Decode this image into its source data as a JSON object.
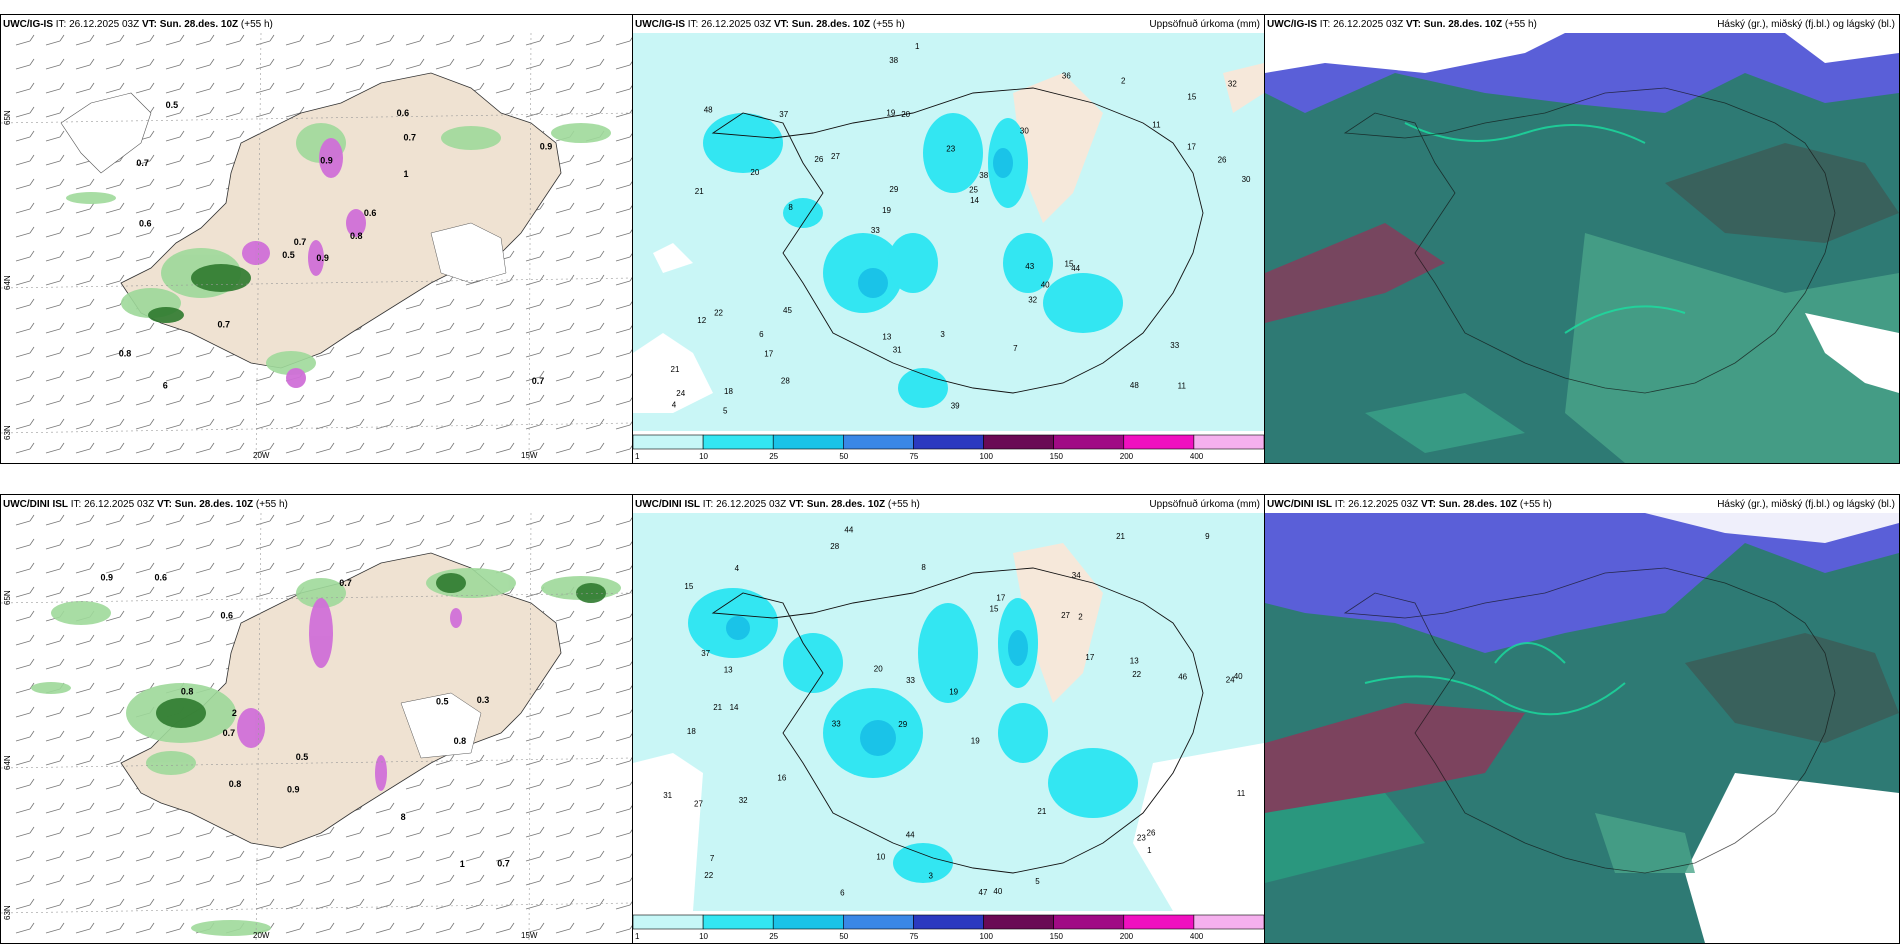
{
  "rows": [
    {
      "model": "UWC/IG-IS",
      "it_label": "IT: 26.12.2025 03Z",
      "vt_label": "VT: Sun. 28.des. 10Z",
      "lead": "(+55 h)"
    },
    {
      "model": "UWC/DINI ISL",
      "it_label": "IT: 26.12.2025 03Z",
      "vt_label": "VT: Sun. 28.des. 10Z",
      "lead": "(+55 h)"
    }
  ],
  "precip_title": "Uppsöfnuð úrkoma (mm)",
  "cloud_title": "Háský (gr.), miðský (fj.bl.) og lágský (bl.)",
  "legend": {
    "ticks": [
      "1",
      "10",
      "25",
      "50",
      "75",
      "100",
      "150",
      "200",
      "400"
    ],
    "colors": [
      "#c6f7f7",
      "#33e6f2",
      "#1ac3e8",
      "#3a87e6",
      "#2b39c0",
      "#6a0a55",
      "#a00a85",
      "#f010c0",
      "#f5b0ee"
    ]
  },
  "axes": {
    "lon_labels": [
      "20W",
      "15W"
    ],
    "lat_labels": [
      "65N",
      "64N",
      "63N"
    ]
  },
  "top_precip_values": [
    "11",
    "21",
    "15",
    "33",
    "30",
    "18",
    "19",
    "23",
    "22",
    "27",
    "21",
    "17",
    "20",
    "38",
    "44",
    "48",
    "38",
    "30",
    "43",
    "17",
    "19",
    "13",
    "29",
    "37",
    "36",
    "45",
    "48",
    "33",
    "15",
    "39",
    "26",
    "20",
    "32",
    "28",
    "26",
    "25",
    "24",
    "31",
    "14",
    "12",
    "11",
    "32",
    "40",
    "7",
    "6",
    "5",
    "4",
    "3",
    "2",
    "1",
    "8"
  ],
  "bottom_precip_values": [
    "44",
    "34",
    "24",
    "29",
    "19",
    "14",
    "15",
    "27",
    "18",
    "15",
    "19",
    "22",
    "28",
    "33",
    "47",
    "40",
    "44",
    "21",
    "17",
    "16",
    "13",
    "21",
    "40",
    "46",
    "31",
    "37",
    "33",
    "22",
    "26",
    "27",
    "23",
    "17",
    "32",
    "20",
    "21",
    "11",
    "13",
    "10",
    "9",
    "8",
    "7",
    "6",
    "5",
    "4",
    "3",
    "2",
    "1"
  ],
  "wind_top_values": [
    "0.9",
    "0.7",
    "0.7",
    "0.8",
    "0.6",
    "0.7",
    "0.6",
    "0.9",
    "0.7",
    "0.8",
    "0.5",
    "0.7",
    "0.6",
    "0.9",
    "0.5",
    "1",
    "6"
  ],
  "wind_bottom_values": [
    "0.5",
    "0.8",
    "0.6",
    "0.8",
    "0.7",
    "0.6",
    "0.9",
    "0.7",
    "0.8",
    "0.5",
    "0.3",
    "0.7",
    "0.9",
    "1",
    "2",
    "8"
  ]
}
